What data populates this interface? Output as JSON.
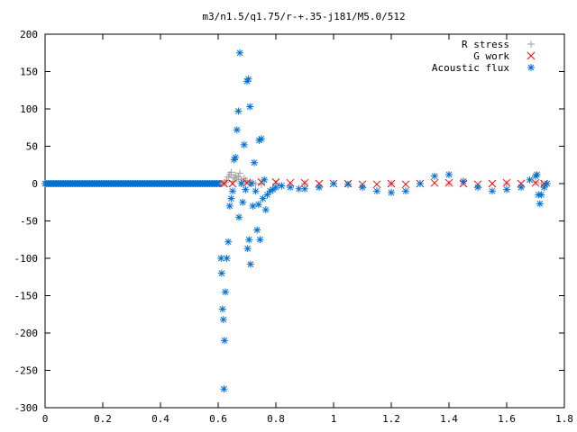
{
  "chart_data": {
    "type": "scatter",
    "title": "m3/n1.5/q1.75/r-+.35-j181/M5.0/512",
    "xlabel": "",
    "ylabel": "",
    "xlim": [
      0,
      1.8
    ],
    "ylim": [
      -300,
      200
    ],
    "xticks": [
      "0",
      "0.2",
      "0.4",
      "0.6",
      "0.8",
      "1",
      "1.2",
      "1.4",
      "1.6",
      "1.8"
    ],
    "yticks": [
      "200",
      "150",
      "100",
      "50",
      "0",
      "-50",
      "-100",
      "-150",
      "-200",
      "-250",
      "-300"
    ],
    "grid": false,
    "legend_position": "top-right",
    "series": [
      {
        "name": "R stress",
        "marker": "plus",
        "color": "#a0a0a0",
        "points": [
          [
            0.615,
            0
          ],
          [
            0.62,
            1
          ],
          [
            0.625,
            2
          ],
          [
            0.63,
            4
          ],
          [
            0.635,
            9
          ],
          [
            0.64,
            12
          ],
          [
            0.645,
            15
          ],
          [
            0.65,
            3
          ],
          [
            0.655,
            8
          ],
          [
            0.66,
            11
          ],
          [
            0.665,
            6
          ],
          [
            0.67,
            9
          ],
          [
            0.675,
            14
          ],
          [
            0.68,
            5
          ],
          [
            0.685,
            2
          ],
          [
            0.69,
            7
          ],
          [
            0.695,
            4
          ],
          [
            0.7,
            3
          ],
          [
            0.71,
            2
          ],
          [
            0.72,
            1
          ],
          [
            0.73,
            0
          ],
          [
            0.75,
            -1
          ],
          [
            0.8,
            0
          ],
          [
            0.9,
            0
          ],
          [
            1.0,
            0
          ],
          [
            1.2,
            0
          ],
          [
            1.4,
            0
          ],
          [
            1.6,
            0
          ],
          [
            1.7,
            2
          ],
          [
            1.72,
            0
          ]
        ]
      },
      {
        "name": "G work",
        "marker": "cross",
        "color": "#ff0000",
        "points": [
          [
            0.62,
            0
          ],
          [
            0.65,
            0
          ],
          [
            0.7,
            1
          ],
          [
            0.75,
            2
          ],
          [
            0.8,
            2
          ],
          [
            0.85,
            1
          ],
          [
            0.9,
            1
          ],
          [
            0.95,
            0
          ],
          [
            1.0,
            0
          ],
          [
            1.05,
            0
          ],
          [
            1.1,
            -1
          ],
          [
            1.15,
            -1
          ],
          [
            1.2,
            0
          ],
          [
            1.25,
            -1
          ],
          [
            1.3,
            0
          ],
          [
            1.35,
            1
          ],
          [
            1.4,
            1
          ],
          [
            1.45,
            0
          ],
          [
            1.5,
            -1
          ],
          [
            1.55,
            0
          ],
          [
            1.6,
            1
          ],
          [
            1.65,
            0
          ],
          [
            1.7,
            1
          ],
          [
            1.73,
            0
          ]
        ]
      },
      {
        "name": "Acoustic flux",
        "marker": "star",
        "color": "#0070d0",
        "points": [
          [
            0.61,
            -100
          ],
          [
            0.612,
            -120
          ],
          [
            0.615,
            -168
          ],
          [
            0.618,
            -182
          ],
          [
            0.62,
            -275
          ],
          [
            0.622,
            -210
          ],
          [
            0.625,
            -145
          ],
          [
            0.63,
            -100
          ],
          [
            0.635,
            -78
          ],
          [
            0.64,
            -30
          ],
          [
            0.645,
            -20
          ],
          [
            0.65,
            -10
          ],
          [
            0.655,
            32
          ],
          [
            0.66,
            35
          ],
          [
            0.665,
            72
          ],
          [
            0.67,
            97
          ],
          [
            0.672,
            -45
          ],
          [
            0.675,
            175
          ],
          [
            0.68,
            0
          ],
          [
            0.685,
            -25
          ],
          [
            0.69,
            52
          ],
          [
            0.695,
            -8
          ],
          [
            0.7,
            137
          ],
          [
            0.702,
            -87
          ],
          [
            0.705,
            140
          ],
          [
            0.707,
            -75
          ],
          [
            0.71,
            103
          ],
          [
            0.712,
            -108
          ],
          [
            0.715,
            0
          ],
          [
            0.72,
            -30
          ],
          [
            0.725,
            28
          ],
          [
            0.73,
            -10
          ],
          [
            0.735,
            -62
          ],
          [
            0.74,
            -28
          ],
          [
            0.742,
            58
          ],
          [
            0.745,
            -75
          ],
          [
            0.75,
            60
          ],
          [
            0.755,
            -20
          ],
          [
            0.76,
            5
          ],
          [
            0.765,
            -35
          ],
          [
            0.77,
            -15
          ],
          [
            0.78,
            -10
          ],
          [
            0.79,
            -8
          ],
          [
            0.8,
            -5
          ],
          [
            0.82,
            -3
          ],
          [
            0.85,
            -5
          ],
          [
            0.88,
            -7
          ],
          [
            0.9,
            -7
          ],
          [
            0.95,
            -5
          ],
          [
            1.0,
            0
          ],
          [
            1.05,
            -1
          ],
          [
            1.1,
            -5
          ],
          [
            1.15,
            -10
          ],
          [
            1.2,
            -12
          ],
          [
            1.25,
            -10
          ],
          [
            1.3,
            0
          ],
          [
            1.35,
            10
          ],
          [
            1.4,
            12
          ],
          [
            1.45,
            3
          ],
          [
            1.5,
            -5
          ],
          [
            1.55,
            -10
          ],
          [
            1.6,
            -8
          ],
          [
            1.65,
            -5
          ],
          [
            1.68,
            5
          ],
          [
            1.7,
            10
          ],
          [
            1.705,
            12
          ],
          [
            1.71,
            -15
          ],
          [
            1.715,
            -27
          ],
          [
            1.72,
            -15
          ],
          [
            1.73,
            -5
          ],
          [
            1.74,
            0
          ]
        ]
      }
    ]
  }
}
